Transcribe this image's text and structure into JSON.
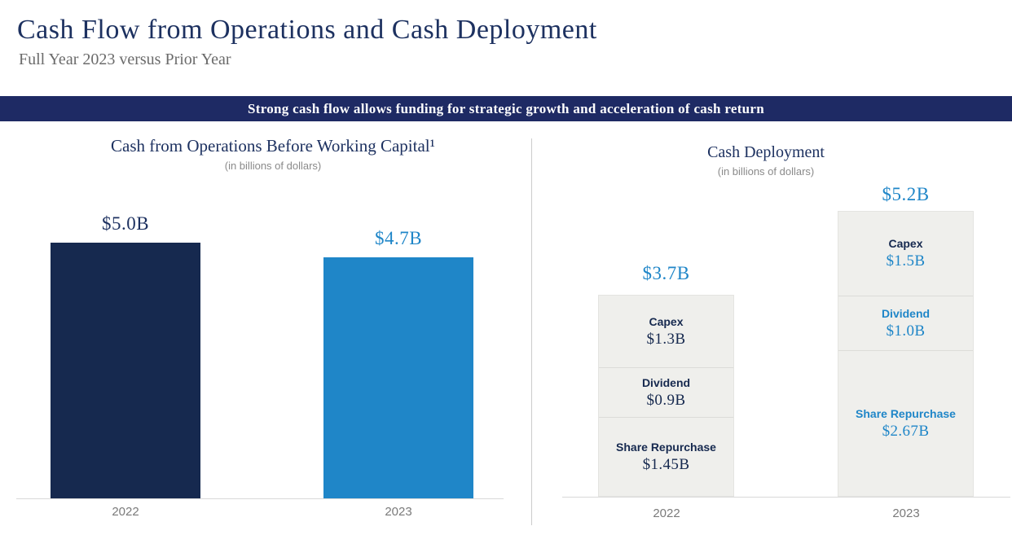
{
  "header": {
    "title": "Cash Flow from Operations and Cash Deployment",
    "subtitle": "Full Year 2023 versus Prior Year"
  },
  "banner": {
    "text": "Strong cash flow allows funding for strategic growth and acceleration of cash return"
  },
  "colors": {
    "navy": "#16294f",
    "blue": "#1f86c8",
    "banner_bg": "#1e2a64",
    "segment_bg": "#efefec"
  },
  "operations_chart": {
    "title": "Cash from Operations Before Working Capital¹",
    "note": "(in billions of dollars)",
    "bars": [
      {
        "year": "2022",
        "value_label": "$5.0B"
      },
      {
        "year": "2023",
        "value_label": "$4.7B"
      }
    ]
  },
  "deployment_chart": {
    "title": "Cash Deployment",
    "note": "(in billions of dollars)",
    "columns": [
      {
        "year": "2022",
        "total_label": "$3.7B",
        "segments": [
          {
            "label": "Capex",
            "value_label": "$1.3B"
          },
          {
            "label": "Dividend",
            "value_label": "$0.9B"
          },
          {
            "label": "Share Repurchase",
            "value_label": "$1.45B"
          }
        ]
      },
      {
        "year": "2023",
        "total_label": "$5.2B",
        "segments": [
          {
            "label": "Capex",
            "value_label": "$1.5B"
          },
          {
            "label": "Dividend",
            "value_label": "$1.0B"
          },
          {
            "label": "Share Repurchase",
            "value_label": "$2.67B"
          }
        ]
      }
    ]
  },
  "chart_data": [
    {
      "type": "bar",
      "title": "Cash from Operations Before Working Capital",
      "unit": "billions of dollars",
      "categories": [
        "2022",
        "2023"
      ],
      "values": [
        5.0,
        4.7
      ],
      "value_labels": [
        "$5.0B",
        "$4.7B"
      ],
      "bar_colors": [
        "#16294f",
        "#1f86c8"
      ],
      "ylim": [
        0,
        5.5
      ],
      "grid": false,
      "legend": false
    },
    {
      "type": "bar",
      "subtype": "stacked",
      "title": "Cash Deployment",
      "unit": "billions of dollars",
      "categories": [
        "2022",
        "2023"
      ],
      "series": [
        {
          "name": "Capex",
          "values": [
            1.3,
            1.5
          ]
        },
        {
          "name": "Dividend",
          "values": [
            0.9,
            1.0
          ]
        },
        {
          "name": "Share Repurchase",
          "values": [
            1.45,
            2.67
          ]
        }
      ],
      "totals": [
        3.7,
        5.2
      ],
      "total_labels": [
        "$3.7B",
        "$5.2B"
      ],
      "segment_color": "#efefec",
      "ylim": [
        0,
        5.5
      ],
      "grid": false,
      "legend": false
    }
  ]
}
